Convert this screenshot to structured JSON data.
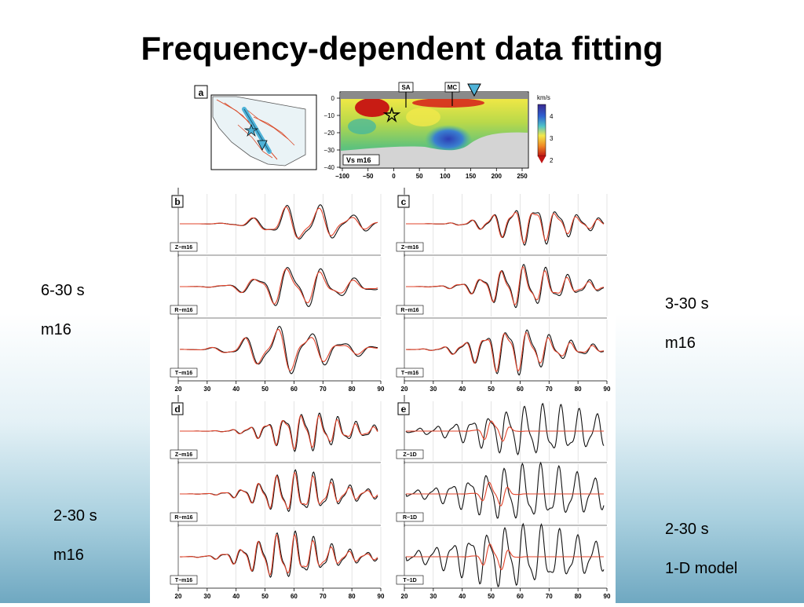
{
  "slide": {
    "title": "Frequency-dependent data fitting",
    "labels": {
      "b": [
        "6-30 s",
        "m16"
      ],
      "c": [
        "3-30 s",
        "m16"
      ],
      "d": [
        "2-30 s",
        "m16"
      ],
      "e": [
        "2-30 s",
        "1-D model"
      ]
    }
  },
  "figure": {
    "panel_a": {
      "letter": "a",
      "section_markers": [
        "SA",
        "MC"
      ],
      "velocity_unit": "km/s",
      "colorbar_ticks": [
        "4",
        "3",
        "2"
      ],
      "depth_ticks": [
        "0",
        "−10",
        "−20",
        "−30",
        "−40"
      ],
      "distance_ticks": [
        "−100",
        "−50",
        "0",
        "50",
        "100",
        "150",
        "200",
        "250"
      ],
      "model_label": "Vs  m16"
    },
    "waveform_panels": [
      {
        "letter": "b",
        "traces": [
          "Z−m16",
          "R−m16",
          "T−m16"
        ]
      },
      {
        "letter": "c",
        "traces": [
          "Z−m16",
          "R−m16",
          "T−m16"
        ]
      },
      {
        "letter": "d",
        "traces": [
          "Z−m16",
          "R−m16",
          "T−m16"
        ]
      },
      {
        "letter": "e",
        "traces": [
          "Z−1D",
          "R−1D",
          "T−1D"
        ]
      }
    ],
    "time_ticks": [
      "20",
      "30",
      "40",
      "50",
      "60",
      "70",
      "80",
      "90"
    ]
  }
}
